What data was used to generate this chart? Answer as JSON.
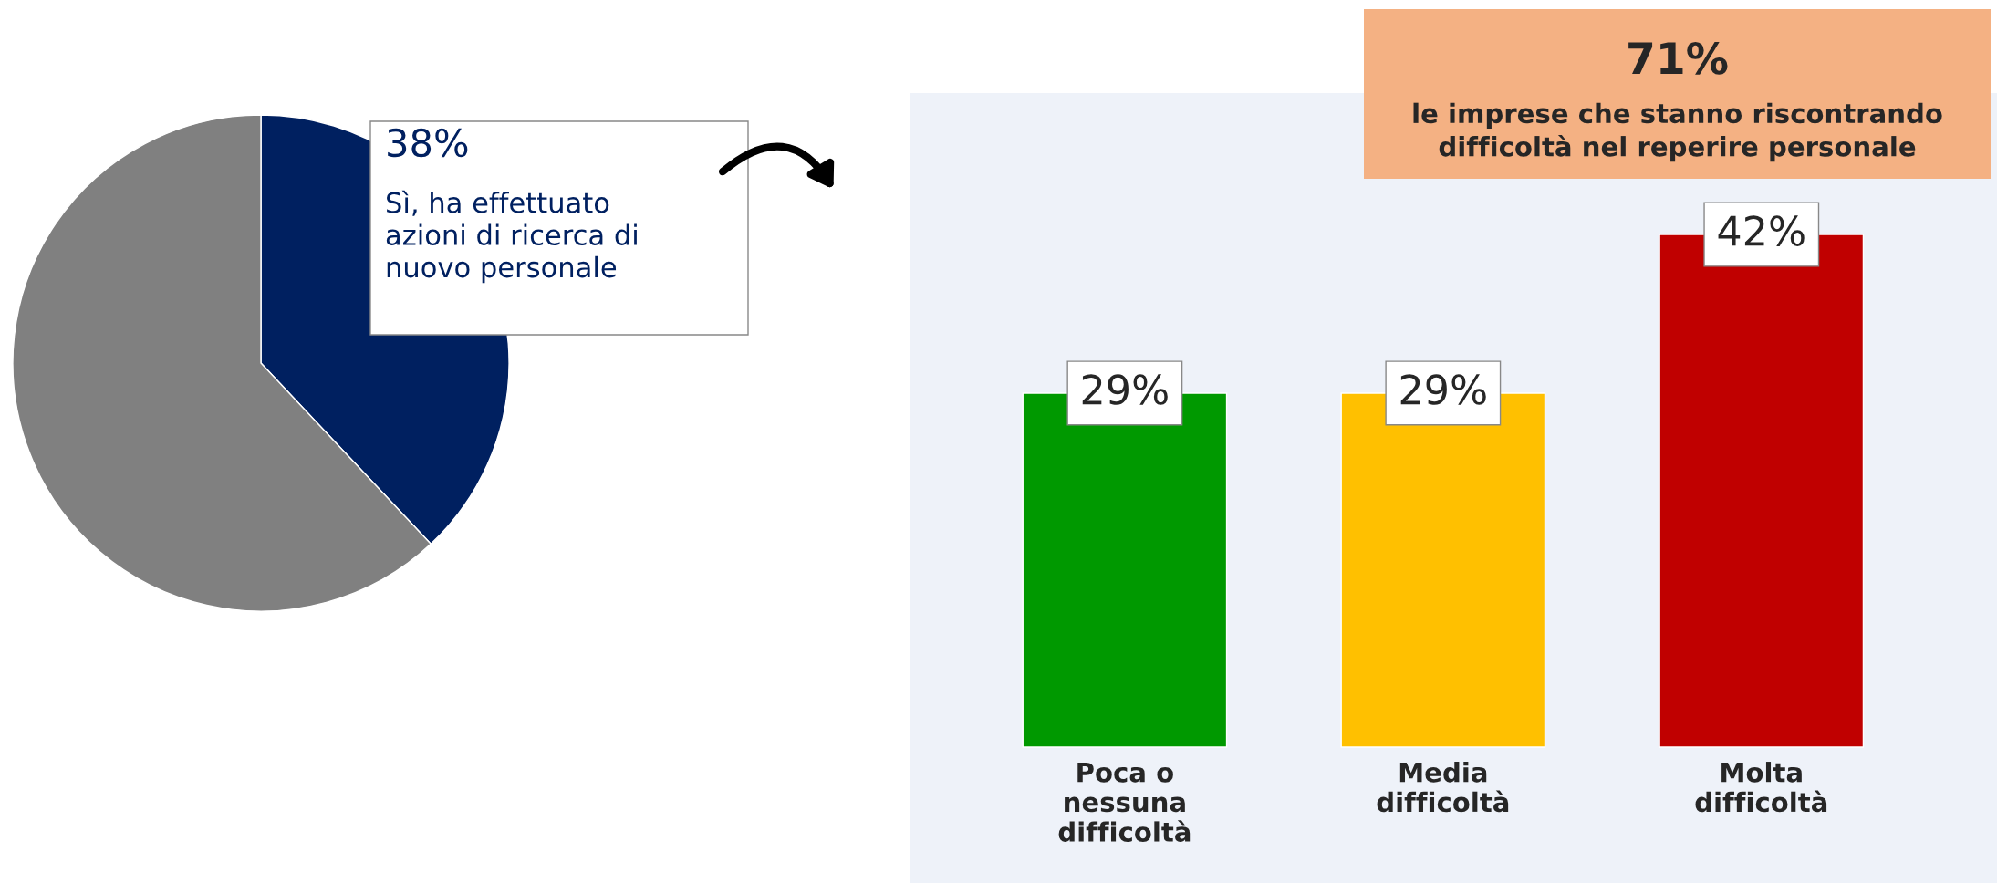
{
  "chart_data": [
    {
      "type": "pie",
      "categories": [
        "Sì, ha effettuato\nazioni di ricerca di\nnuovo personale",
        null
      ],
      "values": [
        38,
        62
      ],
      "colors": [
        "#002060",
        "#808080"
      ],
      "value_labels": [
        "38%",
        null
      ]
    },
    {
      "type": "bar",
      "categories": [
        "Poca o\nnessuna\ndifficoltà",
        "Media\ndifficoltà",
        "Molta\ndifficoltà"
      ],
      "values": [
        29,
        29,
        42
      ],
      "colors": [
        "#009900",
        "#ffc000",
        "#c00000"
      ],
      "value_labels": [
        "29%",
        "29%",
        "42%"
      ],
      "annotations": [
        "71%",
        "le imprese che stanno riscontrando\ndifficoltà nel reperire personale"
      ]
    }
  ]
}
